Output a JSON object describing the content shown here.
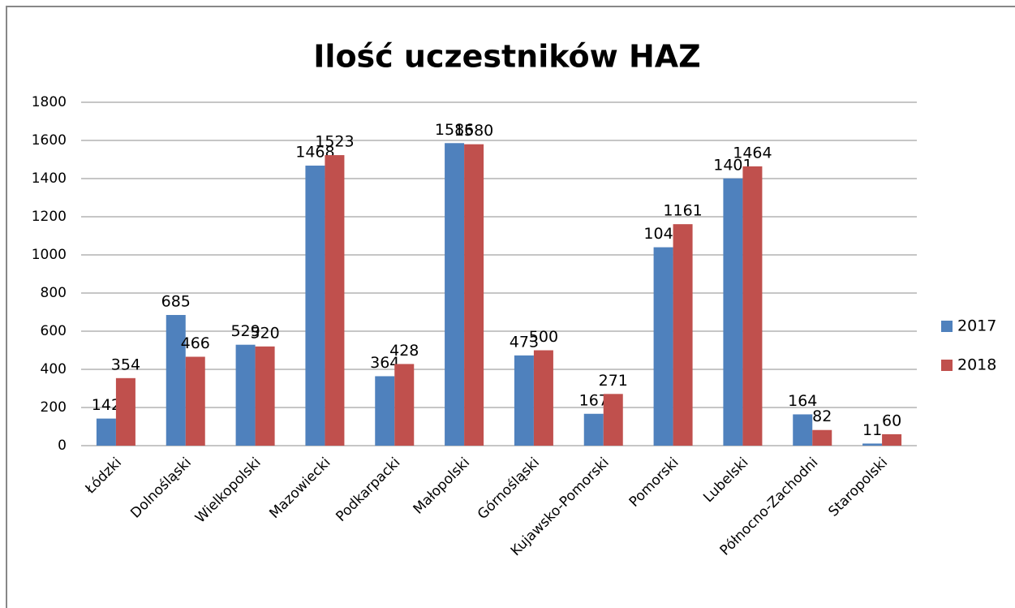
{
  "chart_data": {
    "type": "bar",
    "title": "Ilość uczestników HAZ",
    "categories": [
      "Łódzki",
      "Dolnośląski",
      "Wielkopolski",
      "Mazowiecki",
      "Podkarpacki",
      "Małopolski",
      "Górnośląski",
      "Kujawsko-Pomorski",
      "Pomorski",
      "Lubelski",
      "Północno-Zachodni",
      "Staropolski"
    ],
    "series": [
      {
        "name": "2017",
        "color": "#4f81bd",
        "values": [
          142,
          685,
          529,
          1468,
          364,
          1586,
          473,
          167,
          1040,
          1401,
          164,
          11
        ]
      },
      {
        "name": "2018",
        "color": "#c0504d",
        "values": [
          354,
          466,
          520,
          1523,
          428,
          1580,
          500,
          271,
          1161,
          1464,
          82,
          60
        ]
      }
    ],
    "ylim": [
      0,
      1800
    ],
    "yticks": [
      0,
      200,
      400,
      600,
      800,
      1000,
      1200,
      1400,
      1600,
      1800
    ],
    "grid": true,
    "legend": "right"
  }
}
